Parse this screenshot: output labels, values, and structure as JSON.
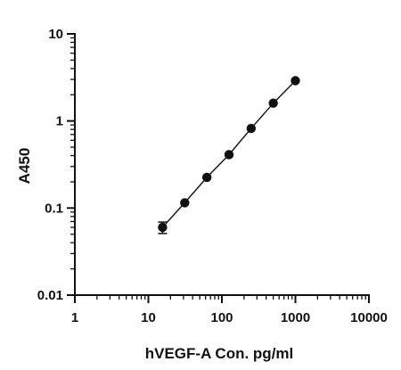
{
  "chart_data": {
    "type": "scatter",
    "xlabel": "hVEGF-A Con. pg/ml",
    "ylabel": "A450",
    "x_scale": "log",
    "y_scale": "log",
    "xlim": [
      1,
      10000
    ],
    "ylim": [
      0.01,
      10
    ],
    "x_ticks": [
      "1",
      "10",
      "100",
      "1000",
      "10000"
    ],
    "y_ticks": [
      "0.01",
      "0.1",
      "1",
      "10"
    ],
    "grid": false,
    "series": [
      {
        "x": [
          15.6,
          31.25,
          62.5,
          125,
          250,
          500,
          1000
        ],
        "y": [
          0.06,
          0.115,
          0.225,
          0.41,
          0.82,
          1.6,
          2.9
        ],
        "error": [
          0.009,
          0,
          0,
          0,
          0,
          0,
          0
        ],
        "fit_line": true,
        "color": "#111111"
      }
    ]
  }
}
